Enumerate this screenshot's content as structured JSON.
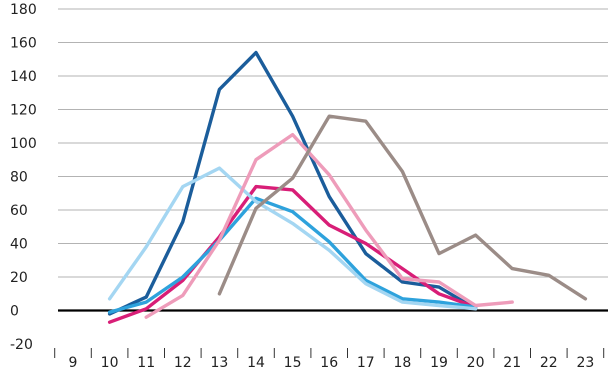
{
  "chart_data": {
    "type": "line",
    "title": "",
    "xlabel": "",
    "ylabel": "",
    "ylim": [
      -20,
      180
    ],
    "xlim": [
      9,
      23
    ],
    "y_ticks": [
      "180",
      "160",
      "140",
      "120",
      "100",
      "80",
      "60",
      "40",
      "20",
      "0",
      "-20"
    ],
    "x_ticks": [
      "9",
      "10",
      "11",
      "12",
      "13",
      "14",
      "15",
      "16",
      "17",
      "18",
      "19",
      "20",
      "21",
      "22",
      "23"
    ],
    "grid": "horizontal",
    "zero_line": true,
    "series": [
      {
        "color": "#1b5d9b",
        "points": [
          [
            10,
            -2
          ],
          [
            11,
            8
          ],
          [
            12,
            53
          ],
          [
            13,
            132
          ],
          [
            14,
            154
          ],
          [
            15,
            116
          ],
          [
            16,
            68
          ],
          [
            17,
            34
          ],
          [
            18,
            17
          ],
          [
            19,
            14
          ],
          [
            20,
            1
          ]
        ]
      },
      {
        "color": "#d81e77",
        "points": [
          [
            10,
            -7
          ],
          [
            11,
            1
          ],
          [
            12,
            18
          ],
          [
            13,
            44
          ],
          [
            14,
            74
          ],
          [
            15,
            72
          ],
          [
            16,
            51
          ],
          [
            17,
            40
          ],
          [
            18,
            25
          ],
          [
            19,
            10
          ],
          [
            20,
            2
          ]
        ]
      },
      {
        "color": "#2ea2dc",
        "points": [
          [
            10,
            -1
          ],
          [
            11,
            5
          ],
          [
            12,
            20
          ],
          [
            13,
            42
          ],
          [
            14,
            67
          ],
          [
            15,
            59
          ],
          [
            16,
            41
          ],
          [
            17,
            18
          ],
          [
            18,
            7
          ],
          [
            19,
            5
          ],
          [
            20,
            2
          ]
        ]
      },
      {
        "color": "#a4d6f2",
        "points": [
          [
            10,
            7
          ],
          [
            11,
            38
          ],
          [
            12,
            74
          ],
          [
            13,
            85
          ],
          [
            14,
            65
          ],
          [
            15,
            52
          ],
          [
            16,
            36
          ],
          [
            17,
            16
          ],
          [
            18,
            5
          ],
          [
            19,
            3
          ],
          [
            20,
            1
          ]
        ]
      },
      {
        "color": "#ee9cba",
        "points": [
          [
            11,
            -4
          ],
          [
            12,
            9
          ],
          [
            13,
            42
          ],
          [
            14,
            90
          ],
          [
            15,
            105
          ],
          [
            16,
            81
          ],
          [
            17,
            48
          ],
          [
            18,
            19
          ],
          [
            19,
            17
          ],
          [
            20,
            3
          ],
          [
            21,
            5
          ]
        ]
      },
      {
        "color": "#9b8c87",
        "points": [
          [
            13,
            10
          ],
          [
            14,
            61
          ],
          [
            15,
            79
          ],
          [
            16,
            116
          ],
          [
            17,
            113
          ],
          [
            18,
            83
          ],
          [
            19,
            34
          ],
          [
            20,
            45
          ],
          [
            21,
            25
          ],
          [
            22,
            21
          ],
          [
            23,
            7
          ]
        ]
      }
    ]
  }
}
